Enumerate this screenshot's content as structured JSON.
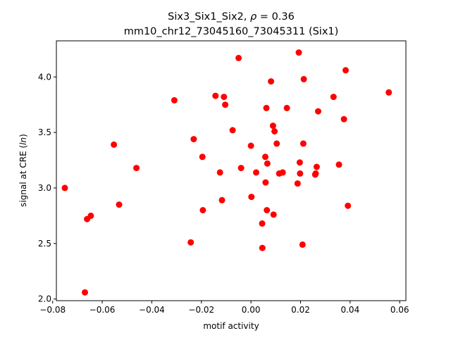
{
  "chart_data": {
    "type": "scatter",
    "title_line1_prefix": "Six3_Six1_Six2, ",
    "title_line1_rho": "ρ",
    "title_line1_suffix": " = 0.36",
    "title_line2": "mm10_chr12_73045160_73045311 (Six1)",
    "xlabel": "motif activity",
    "ylabel_prefix": "signal at CRE (",
    "ylabel_italic": "ln",
    "ylabel_suffix": ")",
    "xlim": [
      -0.0785,
      0.0625
    ],
    "ylim": [
      1.985,
      4.325
    ],
    "xticks": [
      -0.08,
      -0.06,
      -0.04,
      -0.02,
      0.0,
      0.02,
      0.04,
      0.06
    ],
    "xtick_labels": [
      "−0.08",
      "−0.06",
      "−0.04",
      "−0.02",
      "0.00",
      "0.02",
      "0.04",
      "0.06"
    ],
    "yticks": [
      2.0,
      2.5,
      3.0,
      3.5,
      4.0
    ],
    "ytick_labels": [
      "2.0",
      "2.5",
      "3.0",
      "3.5",
      "4.0"
    ],
    "grid": false,
    "marker_color": "#ff0000",
    "points": [
      {
        "x": -0.0751,
        "y": 3.0
      },
      {
        "x": -0.067,
        "y": 2.06
      },
      {
        "x": -0.0661,
        "y": 2.72
      },
      {
        "x": -0.0646,
        "y": 2.75
      },
      {
        "x": -0.0553,
        "y": 3.39
      },
      {
        "x": -0.0532,
        "y": 2.85
      },
      {
        "x": -0.0462,
        "y": 3.18
      },
      {
        "x": -0.0309,
        "y": 3.79
      },
      {
        "x": -0.0243,
        "y": 2.51
      },
      {
        "x": -0.0231,
        "y": 3.44
      },
      {
        "x": -0.0196,
        "y": 3.28
      },
      {
        "x": -0.0194,
        "y": 2.8
      },
      {
        "x": -0.0143,
        "y": 3.83
      },
      {
        "x": -0.0125,
        "y": 3.14
      },
      {
        "x": -0.0117,
        "y": 2.89
      },
      {
        "x": -0.0109,
        "y": 3.82
      },
      {
        "x": -0.0104,
        "y": 3.75
      },
      {
        "x": -0.0074,
        "y": 3.52
      },
      {
        "x": -0.005,
        "y": 4.17
      },
      {
        "x": -0.004,
        "y": 3.18
      },
      {
        "x": 0.0,
        "y": 3.38
      },
      {
        "x": 0.0002,
        "y": 2.92
      },
      {
        "x": 0.0021,
        "y": 3.14
      },
      {
        "x": 0.0045,
        "y": 2.68
      },
      {
        "x": 0.0046,
        "y": 2.46
      },
      {
        "x": 0.0058,
        "y": 3.28
      },
      {
        "x": 0.0059,
        "y": 3.05
      },
      {
        "x": 0.0062,
        "y": 3.72
      },
      {
        "x": 0.0064,
        "y": 2.8
      },
      {
        "x": 0.0066,
        "y": 3.22
      },
      {
        "x": 0.0081,
        "y": 3.96
      },
      {
        "x": 0.0089,
        "y": 3.56
      },
      {
        "x": 0.0091,
        "y": 2.76
      },
      {
        "x": 0.0095,
        "y": 3.51
      },
      {
        "x": 0.0104,
        "y": 3.4
      },
      {
        "x": 0.0114,
        "y": 3.13
      },
      {
        "x": 0.0128,
        "y": 3.14
      },
      {
        "x": 0.0145,
        "y": 3.72
      },
      {
        "x": 0.0188,
        "y": 3.04
      },
      {
        "x": 0.0193,
        "y": 4.22
      },
      {
        "x": 0.0197,
        "y": 3.23
      },
      {
        "x": 0.0198,
        "y": 3.13
      },
      {
        "x": 0.0208,
        "y": 2.49
      },
      {
        "x": 0.0211,
        "y": 3.4
      },
      {
        "x": 0.0213,
        "y": 3.98
      },
      {
        "x": 0.0259,
        "y": 3.12
      },
      {
        "x": 0.0261,
        "y": 3.13
      },
      {
        "x": 0.0265,
        "y": 3.19
      },
      {
        "x": 0.0271,
        "y": 3.69
      },
      {
        "x": 0.0333,
        "y": 3.82
      },
      {
        "x": 0.0355,
        "y": 3.21
      },
      {
        "x": 0.0375,
        "y": 3.62
      },
      {
        "x": 0.0382,
        "y": 4.06
      },
      {
        "x": 0.0391,
        "y": 2.84
      },
      {
        "x": 0.0556,
        "y": 3.86
      }
    ]
  }
}
